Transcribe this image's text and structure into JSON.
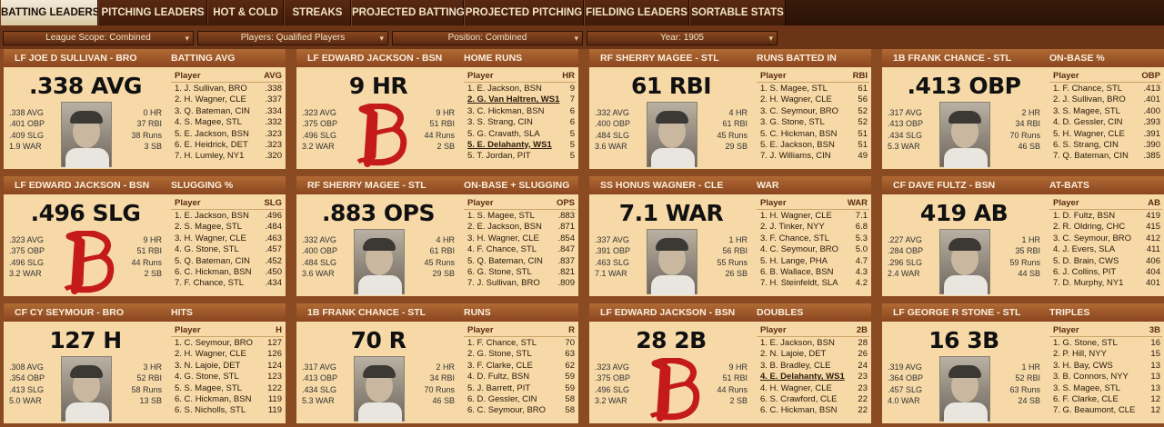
{
  "tabs": [
    {
      "label": "BATTING LEADERS"
    },
    {
      "label": "PITCHING LEADERS"
    },
    {
      "label": "HOT & COLD"
    },
    {
      "label": "STREAKS"
    },
    {
      "label": "PROJECTED BATTING"
    },
    {
      "label": "PROJECTED PITCHING"
    },
    {
      "label": "FIELDING LEADERS"
    },
    {
      "label": "SORTABLE STATS"
    }
  ],
  "filters": [
    {
      "label": "League Scope: Combined"
    },
    {
      "label": "Players: Qualified Players"
    },
    {
      "label": "Position: Combined"
    },
    {
      "label": "Year: 1905"
    }
  ],
  "colors": {
    "accent_header": "#9c5628",
    "card_bg": "#f6d9a7",
    "logo_red": "#c41a1a",
    "tab_active": "#efe5cf"
  },
  "cards": [
    {
      "header_player": "LF JOE D SULLIVAN - BRO",
      "header_stat": "BATTING AVG",
      "big": ".338 AVG",
      "image": "photo",
      "stats_left": [
        ".338 AVG",
        ".401 OBP",
        ".409 SLG",
        "1.9 WAR"
      ],
      "stats_right": [
        "0 HR",
        "37 RBI",
        "38 Runs",
        "3 SB"
      ],
      "col_player": "Player",
      "col_stat": "AVG",
      "rows": [
        {
          "name": "1. J. Sullivan, BRO",
          "value": ".338"
        },
        {
          "name": "2. H. Wagner, CLE",
          "value": ".337"
        },
        {
          "name": "3. Q. Bateman, CIN",
          "value": ".334"
        },
        {
          "name": "4. S. Magee, STL",
          "value": ".332"
        },
        {
          "name": "5. E. Jackson, BSN",
          "value": ".323"
        },
        {
          "name": "6. E. Heidrick, DET",
          "value": ".323"
        },
        {
          "name": "7. H. Lumley, NY1",
          "value": ".320"
        }
      ]
    },
    {
      "header_player": "LF EDWARD JACKSON - BSN",
      "header_stat": "HOME RUNS",
      "big": "9 HR",
      "image": "logo",
      "stats_left": [
        ".323 AVG",
        ".375 OBP",
        ".496 SLG",
        "3.2 WAR"
      ],
      "stats_right": [
        "9 HR",
        "51 RBI",
        "44 Runs",
        "2 SB"
      ],
      "col_player": "Player",
      "col_stat": "HR",
      "rows": [
        {
          "name": "1. E. Jackson, BSN",
          "value": "9"
        },
        {
          "name": "2. G. Van Haltren, WS1",
          "value": "7",
          "hi": true
        },
        {
          "name": "3. C. Hickman, BSN",
          "value": "6"
        },
        {
          "name": "3. S. Strang, CIN",
          "value": "6"
        },
        {
          "name": "5. G. Cravath, SLA",
          "value": "5"
        },
        {
          "name": "5. E. Delahanty, WS1",
          "value": "5",
          "hi": true
        },
        {
          "name": "5. T. Jordan, PIT",
          "value": "5"
        }
      ]
    },
    {
      "header_player": "RF SHERRY MAGEE - STL",
      "header_stat": "RUNS BATTED IN",
      "big": "61 RBI",
      "image": "photo",
      "stats_left": [
        ".332 AVG",
        ".400 OBP",
        ".484 SLG",
        "3.6 WAR"
      ],
      "stats_right": [
        "4 HR",
        "61 RBI",
        "45 Runs",
        "29 SB"
      ],
      "col_player": "Player",
      "col_stat": "RBI",
      "rows": [
        {
          "name": "1. S. Magee, STL",
          "value": "61"
        },
        {
          "name": "2. H. Wagner, CLE",
          "value": "56"
        },
        {
          "name": "3. C. Seymour, BRO",
          "value": "52"
        },
        {
          "name": "3. G. Stone, STL",
          "value": "52"
        },
        {
          "name": "5. C. Hickman, BSN",
          "value": "51"
        },
        {
          "name": "5. E. Jackson, BSN",
          "value": "51"
        },
        {
          "name": "7. J. Williams, CIN",
          "value": "49"
        }
      ]
    },
    {
      "header_player": "1B FRANK CHANCE - STL",
      "header_stat": "ON-BASE %",
      "big": ".413 OBP",
      "image": "photo",
      "stats_left": [
        ".317 AVG",
        ".413 OBP",
        ".434 SLG",
        "5.3 WAR"
      ],
      "stats_right": [
        "2 HR",
        "34 RBI",
        "70 Runs",
        "46 SB"
      ],
      "col_player": "Player",
      "col_stat": "OBP",
      "rows": [
        {
          "name": "1. F. Chance, STL",
          "value": ".413"
        },
        {
          "name": "2. J. Sullivan, BRO",
          "value": ".401"
        },
        {
          "name": "3. S. Magee, STL",
          "value": ".400"
        },
        {
          "name": "4. D. Gessler, CIN",
          "value": ".393"
        },
        {
          "name": "5. H. Wagner, CLE",
          "value": ".391"
        },
        {
          "name": "6. S. Strang, CIN",
          "value": ".390"
        },
        {
          "name": "7. Q. Bateman, CIN",
          "value": ".385"
        }
      ]
    },
    {
      "header_player": "LF EDWARD JACKSON - BSN",
      "header_stat": "SLUGGING %",
      "big": ".496 SLG",
      "image": "logo",
      "stats_left": [
        ".323 AVG",
        ".375 OBP",
        ".496 SLG",
        "3.2 WAR"
      ],
      "stats_right": [
        "9 HR",
        "51 RBI",
        "44 Runs",
        "2 SB"
      ],
      "col_player": "Player",
      "col_stat": "SLG",
      "rows": [
        {
          "name": "1. E. Jackson, BSN",
          "value": ".496"
        },
        {
          "name": "2. S. Magee, STL",
          "value": ".484"
        },
        {
          "name": "3. H. Wagner, CLE",
          "value": ".463"
        },
        {
          "name": "4. G. Stone, STL",
          "value": ".457"
        },
        {
          "name": "5. Q. Bateman, CIN",
          "value": ".452"
        },
        {
          "name": "6. C. Hickman, BSN",
          "value": ".450"
        },
        {
          "name": "7. F. Chance, STL",
          "value": ".434"
        }
      ]
    },
    {
      "header_player": "RF SHERRY MAGEE - STL",
      "header_stat": "ON-BASE + SLUGGING",
      "big": ".883 OPS",
      "image": "photo",
      "stats_left": [
        ".332 AVG",
        ".400 OBP",
        ".484 SLG",
        "3.6 WAR"
      ],
      "stats_right": [
        "4 HR",
        "61 RBI",
        "45 Runs",
        "29 SB"
      ],
      "col_player": "Player",
      "col_stat": "OPS",
      "rows": [
        {
          "name": "1. S. Magee, STL",
          "value": ".883"
        },
        {
          "name": "2. E. Jackson, BSN",
          "value": ".871"
        },
        {
          "name": "3. H. Wagner, CLE",
          "value": ".854"
        },
        {
          "name": "4. F. Chance, STL",
          "value": ".847"
        },
        {
          "name": "5. Q. Bateman, CIN",
          "value": ".837"
        },
        {
          "name": "6. G. Stone, STL",
          "value": ".821"
        },
        {
          "name": "7. J. Sullivan, BRO",
          "value": ".809"
        }
      ]
    },
    {
      "header_player": "SS HONUS WAGNER - CLE",
      "header_stat": "WAR",
      "big": "7.1 WAR",
      "image": "photo",
      "stats_left": [
        ".337 AVG",
        ".391 OBP",
        ".463 SLG",
        "7.1 WAR"
      ],
      "stats_right": [
        "1 HR",
        "56 RBI",
        "55 Runs",
        "26 SB"
      ],
      "col_player": "Player",
      "col_stat": "WAR",
      "rows": [
        {
          "name": "1. H. Wagner, CLE",
          "value": "7.1"
        },
        {
          "name": "2. J. Tinker, NYY",
          "value": "6.8"
        },
        {
          "name": "3. F. Chance, STL",
          "value": "5.3"
        },
        {
          "name": "4. C. Seymour, BRO",
          "value": "5.0"
        },
        {
          "name": "5. H. Lange, PHA",
          "value": "4.7"
        },
        {
          "name": "6. B. Wallace, BSN",
          "value": "4.3"
        },
        {
          "name": "7. H. Steinfeldt, SLA",
          "value": "4.2"
        }
      ]
    },
    {
      "header_player": "CF DAVE FULTZ - BSN",
      "header_stat": "AT-BATS",
      "big": "419 AB",
      "image": "photo",
      "stats_left": [
        ".227 AVG",
        ".284 OBP",
        ".296 SLG",
        "2.4 WAR"
      ],
      "stats_right": [
        "1 HR",
        "35 RBI",
        "59 Runs",
        "44 SB"
      ],
      "col_player": "Player",
      "col_stat": "AB",
      "rows": [
        {
          "name": "1. D. Fultz, BSN",
          "value": "419"
        },
        {
          "name": "2. R. Oldring, CHC",
          "value": "415"
        },
        {
          "name": "3. C. Seymour, BRO",
          "value": "412"
        },
        {
          "name": "4. J. Evers, SLA",
          "value": "411"
        },
        {
          "name": "5. D. Brain, CWS",
          "value": "406"
        },
        {
          "name": "6. J. Collins, PIT",
          "value": "404"
        },
        {
          "name": "7. D. Murphy, NY1",
          "value": "401"
        }
      ]
    },
    {
      "header_player": "CF CY SEYMOUR - BRO",
      "header_stat": "HITS",
      "big": "127 H",
      "image": "photo",
      "stats_left": [
        ".308 AVG",
        ".354 OBP",
        ".413 SLG",
        "5.0 WAR"
      ],
      "stats_right": [
        "3 HR",
        "52 RBI",
        "58 Runs",
        "13 SB"
      ],
      "col_player": "Player",
      "col_stat": "H",
      "rows": [
        {
          "name": "1. C. Seymour, BRO",
          "value": "127"
        },
        {
          "name": "2. H. Wagner, CLE",
          "value": "126"
        },
        {
          "name": "3. N. Lajoie, DET",
          "value": "124"
        },
        {
          "name": "4. G. Stone, STL",
          "value": "123"
        },
        {
          "name": "5. S. Magee, STL",
          "value": "122"
        },
        {
          "name": "6. C. Hickman, BSN",
          "value": "119"
        },
        {
          "name": "6. S. Nicholls, STL",
          "value": "119"
        }
      ]
    },
    {
      "header_player": "1B FRANK CHANCE - STL",
      "header_stat": "RUNS",
      "big": "70 R",
      "image": "photo",
      "stats_left": [
        ".317 AVG",
        ".413 OBP",
        ".434 SLG",
        "5.3 WAR"
      ],
      "stats_right": [
        "2 HR",
        "34 RBI",
        "70 Runs",
        "46 SB"
      ],
      "col_player": "Player",
      "col_stat": "R",
      "rows": [
        {
          "name": "1. F. Chance, STL",
          "value": "70"
        },
        {
          "name": "2. G. Stone, STL",
          "value": "63"
        },
        {
          "name": "3. F. Clarke, CLE",
          "value": "62"
        },
        {
          "name": "4. D. Fultz, BSN",
          "value": "59"
        },
        {
          "name": "5. J. Barrett, PIT",
          "value": "59"
        },
        {
          "name": "6. D. Gessler, CIN",
          "value": "58"
        },
        {
          "name": "6. C. Seymour, BRO",
          "value": "58"
        }
      ]
    },
    {
      "header_player": "LF EDWARD JACKSON - BSN",
      "header_stat": "DOUBLES",
      "big": "28 2B",
      "image": "logo",
      "stats_left": [
        ".323 AVG",
        ".375 OBP",
        ".496 SLG",
        "3.2 WAR"
      ],
      "stats_right": [
        "9 HR",
        "51 RBI",
        "44 Runs",
        "2 SB"
      ],
      "col_player": "Player",
      "col_stat": "2B",
      "rows": [
        {
          "name": "1. E. Jackson, BSN",
          "value": "28"
        },
        {
          "name": "2. N. Lajoie, DET",
          "value": "26"
        },
        {
          "name": "3. B. Bradley, CLE",
          "value": "24"
        },
        {
          "name": "4. E. Delahanty, WS1",
          "value": "23",
          "hi": true
        },
        {
          "name": "4. H. Wagner, CLE",
          "value": "23"
        },
        {
          "name": "6. S. Crawford, CLE",
          "value": "22"
        },
        {
          "name": "6. C. Hickman, BSN",
          "value": "22"
        }
      ]
    },
    {
      "header_player": "LF GEORGE R STONE - STL",
      "header_stat": "TRIPLES",
      "big": "16 3B",
      "image": "photo",
      "stats_left": [
        ".319 AVG",
        ".364 OBP",
        ".457 SLG",
        "4.0 WAR"
      ],
      "stats_right": [
        "1 HR",
        "52 RBI",
        "63 Runs",
        "24 SB"
      ],
      "col_player": "Player",
      "col_stat": "3B",
      "rows": [
        {
          "name": "1. G. Stone, STL",
          "value": "16"
        },
        {
          "name": "2. P. Hill, NYY",
          "value": "15"
        },
        {
          "name": "3. H. Bay, CWS",
          "value": "13"
        },
        {
          "name": "3. B. Connors, NYY",
          "value": "13"
        },
        {
          "name": "3. S. Magee, STL",
          "value": "13"
        },
        {
          "name": "6. F. Clarke, CLE",
          "value": "12"
        },
        {
          "name": "7. G. Beaumont, CLE",
          "value": "12"
        }
      ]
    }
  ]
}
